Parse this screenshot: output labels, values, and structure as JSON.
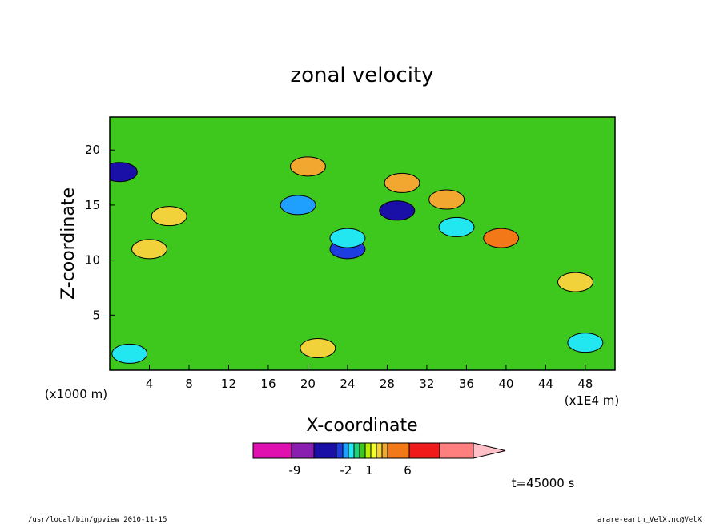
{
  "chart_data": {
    "type": "heatmap",
    "title": "zonal velocity",
    "xlabel": "X-coordinate",
    "ylabel": "Z-coordinate",
    "x_unit_label": "(x1000 m)",
    "x_scale_label": "(x1E4 m)",
    "xlim": [
      0,
      51
    ],
    "ylim": [
      0,
      23
    ],
    "x_ticks": [
      "4",
      "8",
      "12",
      "16",
      "20",
      "24",
      "28",
      "32",
      "36",
      "40",
      "44",
      "48"
    ],
    "y_ticks": [
      "5",
      "10",
      "15",
      "20"
    ],
    "colorbar": {
      "colors": [
        "#e010b0",
        "#8a1eb0",
        "#1a10a8",
        "#1e3de0",
        "#1fa0ff",
        "#22e6f0",
        "#1ed07a",
        "#3ec81e",
        "#b8f000",
        "#f2ff2a",
        "#f2d23a",
        "#f2a830",
        "#f27818",
        "#f01a1a",
        "#ff7f7f",
        "#ffc0c8"
      ],
      "tick_labels": [
        "-9",
        "-2",
        "1",
        "6"
      ]
    },
    "time_label": "t=45000 s",
    "features": [
      {
        "x": 1,
        "z": 18,
        "level": 2
      },
      {
        "x": 29,
        "z": 14.5,
        "level": 2
      },
      {
        "x": 24,
        "z": 11,
        "level": 3
      },
      {
        "x": 19,
        "z": 15,
        "level": 4
      },
      {
        "x": 24,
        "z": 12,
        "level": 5
      },
      {
        "x": 2,
        "z": 1.5,
        "level": 5
      },
      {
        "x": 48,
        "z": 2.5,
        "level": 5
      },
      {
        "x": 35,
        "z": 13,
        "level": 5
      },
      {
        "x": 20,
        "z": 18.5,
        "level": 11
      },
      {
        "x": 29.5,
        "z": 17,
        "level": 11
      },
      {
        "x": 39.5,
        "z": 12,
        "level": 12
      },
      {
        "x": 34,
        "z": 15.5,
        "level": 11
      },
      {
        "x": 4,
        "z": 11,
        "level": 10
      },
      {
        "x": 6,
        "z": 14,
        "level": 10
      },
      {
        "x": 21,
        "z": 2,
        "level": 10
      },
      {
        "x": 47,
        "z": 8,
        "level": 10
      }
    ]
  },
  "footer": {
    "left": "/usr/local/bin/gpview   2010-11-15",
    "right": "arare-earth_VelX.nc@VelX"
  }
}
